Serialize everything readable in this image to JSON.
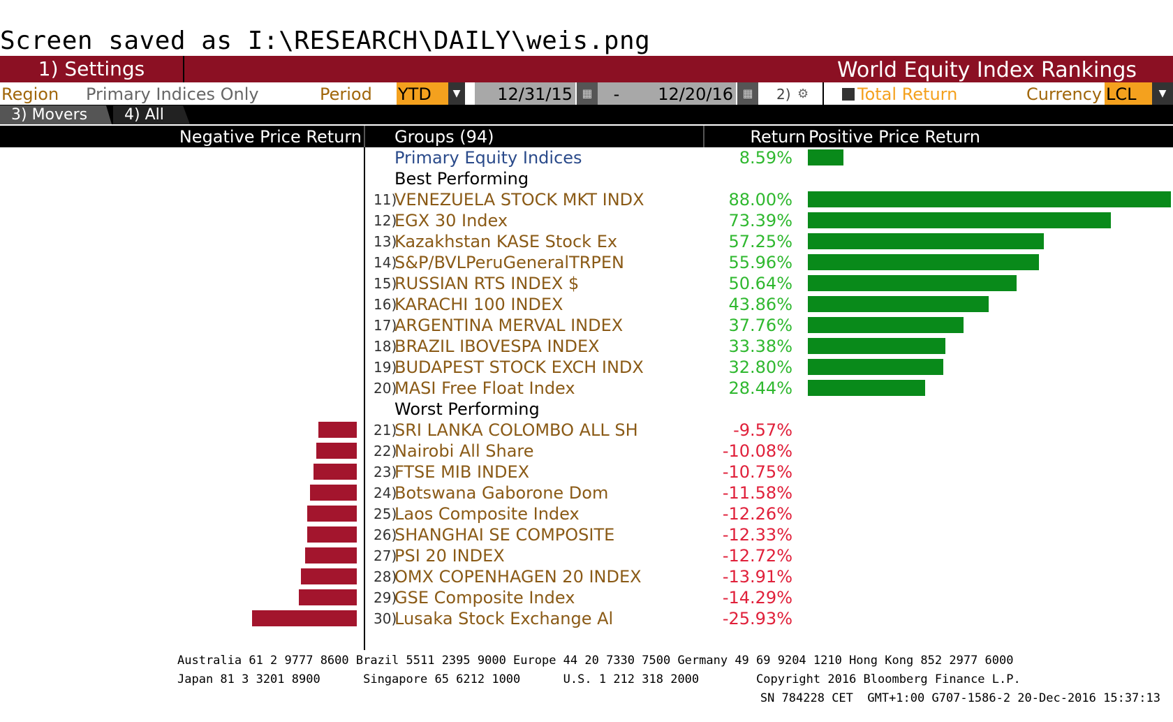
{
  "saved_message": "Screen saved as I:\\RESEARCH\\DAILY\\weis.png",
  "titlebar": {
    "settings": "1) Settings",
    "title": "World Equity Index Rankings"
  },
  "filters": {
    "region_label": "Region",
    "region_value": "Primary Indices Only",
    "period_label": "Period",
    "period_value": "YTD",
    "start_date": "12/31/15",
    "date_sep": "-",
    "end_date": "12/20/16",
    "option_2": "2)",
    "total_return": "Total Return",
    "currency_label": "Currency",
    "currency_value": "LCL"
  },
  "tabs": {
    "movers": "3) Movers",
    "all": "4) All"
  },
  "header": {
    "negative": "Negative Price Return",
    "groups": "Groups (94)",
    "return": "Return",
    "positive": "Positive Price Return"
  },
  "summary": {
    "name": "Primary Equity Indices",
    "value": "8.59%",
    "pct": 8.59
  },
  "best_label": "Best Performing",
  "worst_label": "Worst Performing",
  "best": [
    {
      "num": "11)",
      "name": "VENEZUELA STOCK MKT INDX",
      "value": "88.00%",
      "pct": 88.0
    },
    {
      "num": "12)",
      "name": "EGX 30 Index",
      "value": "73.39%",
      "pct": 73.39
    },
    {
      "num": "13)",
      "name": "Kazakhstan KASE Stock Ex",
      "value": "57.25%",
      "pct": 57.25
    },
    {
      "num": "14)",
      "name": "S&P/BVLPeruGeneralTRPEN",
      "value": "55.96%",
      "pct": 55.96
    },
    {
      "num": "15)",
      "name": "RUSSIAN RTS INDEX $",
      "value": "50.64%",
      "pct": 50.64
    },
    {
      "num": "16)",
      "name": "KARACHI 100 INDEX",
      "value": "43.86%",
      "pct": 43.86
    },
    {
      "num": "17)",
      "name": "ARGENTINA MERVAL INDEX",
      "value": "37.76%",
      "pct": 37.76
    },
    {
      "num": "18)",
      "name": "BRAZIL IBOVESPA INDEX",
      "value": "33.38%",
      "pct": 33.38
    },
    {
      "num": "19)",
      "name": "BUDAPEST STOCK EXCH INDX",
      "value": "32.80%",
      "pct": 32.8
    },
    {
      "num": "20)",
      "name": "MASI Free Float Index",
      "value": "28.44%",
      "pct": 28.44
    }
  ],
  "worst": [
    {
      "num": "21)",
      "name": "SRI LANKA COLOMBO ALL SH",
      "value": "-9.57%",
      "pct": -9.57
    },
    {
      "num": "22)",
      "name": "Nairobi All Share",
      "value": "-10.08%",
      "pct": -10.08
    },
    {
      "num": "23)",
      "name": "FTSE MIB INDEX",
      "value": "-10.75%",
      "pct": -10.75
    },
    {
      "num": "24)",
      "name": "Botswana Gaborone Dom",
      "value": "-11.58%",
      "pct": -11.58
    },
    {
      "num": "25)",
      "name": "Laos Composite Index",
      "value": "-12.26%",
      "pct": -12.26
    },
    {
      "num": "26)",
      "name": "SHANGHAI SE COMPOSITE",
      "value": "-12.33%",
      "pct": -12.33
    },
    {
      "num": "27)",
      "name": "PSI 20 INDEX",
      "value": "-12.72%",
      "pct": -12.72
    },
    {
      "num": "28)",
      "name": "OMX COPENHAGEN 20 INDEX",
      "value": "-13.91%",
      "pct": -13.91
    },
    {
      "num": "29)",
      "name": "GSE Composite Index",
      "value": "-14.29%",
      "pct": -14.29
    },
    {
      "num": "30)",
      "name": "Lusaka Stock Exchange Al",
      "value": "-25.93%",
      "pct": -25.93
    }
  ],
  "footer": {
    "line1": "Australia 61 2 9777 8600 Brazil 5511 2395 9000 Europe 44 20 7330 7500 Germany 49 69 9204 1210 Hong Kong 852 2977 6000",
    "line2": "Japan 81 3 3201 8900      Singapore 65 6212 1000      U.S. 1 212 318 2000        Copyright 2016 Bloomberg Finance L.P.",
    "line3": "SN 784228 CET  GMT+1:00 G707-1586-2 20-Dec-2016 15:37:13"
  },
  "colors": {
    "accent": "#8b1023",
    "positive_bar": "#098a1a",
    "negative_bar": "#a3152d",
    "orange": "#f4a11e"
  }
}
